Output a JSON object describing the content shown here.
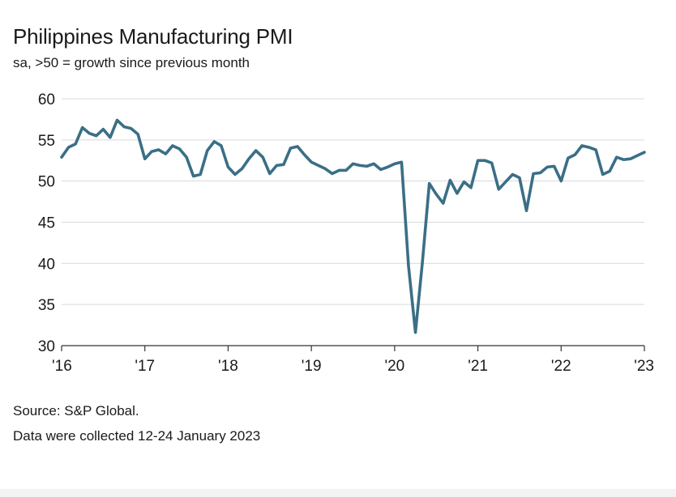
{
  "header": {
    "title": "Philippines Manufacturing PMI",
    "subtitle": "sa, >50 = growth since previous month"
  },
  "footer": {
    "source": "Source: S&P Global.",
    "note": "Data were collected 12-24 January 2023"
  },
  "colors": {
    "line": "#3a6f86",
    "grid": "#d9d9d9",
    "axis": "#333333"
  },
  "chart_data": {
    "type": "line",
    "title": "Philippines Manufacturing PMI",
    "subtitle": "sa, >50 = growth since previous month",
    "xlabel": "",
    "ylabel": "",
    "ylim": [
      30,
      60
    ],
    "yticks": [
      30,
      35,
      40,
      45,
      50,
      55,
      60
    ],
    "ytick_labels": [
      "30",
      "35",
      "40",
      "45",
      "50",
      "55",
      "60"
    ],
    "xlim": [
      2016.0,
      2023.0
    ],
    "xticks": [
      2016,
      2017,
      2018,
      2019,
      2020,
      2021,
      2022,
      2023
    ],
    "xtick_labels": [
      "'16",
      "'17",
      "'18",
      "'19",
      "'20",
      "'21",
      "'22",
      "'23"
    ],
    "grid": true,
    "series": [
      {
        "name": "Philippines Manufacturing PMI",
        "start": "2016-01",
        "values": [
          52.9,
          54.1,
          54.5,
          56.5,
          55.8,
          55.5,
          56.3,
          55.3,
          57.4,
          56.6,
          56.4,
          55.7,
          52.7,
          53.6,
          53.8,
          53.3,
          54.3,
          53.9,
          52.9,
          50.6,
          50.8,
          53.7,
          54.8,
          54.3,
          51.7,
          50.8,
          51.5,
          52.7,
          53.7,
          52.9,
          50.9,
          51.9,
          52.0,
          54.0,
          54.2,
          53.2,
          52.3,
          51.9,
          51.5,
          50.9,
          51.3,
          51.3,
          52.1,
          51.9,
          51.8,
          52.1,
          51.4,
          51.7,
          52.1,
          52.3,
          39.7,
          31.6,
          40.1,
          49.7,
          48.4,
          47.3,
          50.1,
          48.5,
          49.9,
          49.2,
          52.5,
          52.5,
          52.2,
          49.0,
          49.9,
          50.8,
          50.4,
          46.4,
          50.9,
          51.0,
          51.7,
          51.8,
          50.0,
          52.8,
          53.2,
          54.3,
          54.1,
          53.8,
          50.8,
          51.2,
          52.9,
          52.6,
          52.7,
          53.1,
          53.5
        ]
      }
    ]
  }
}
